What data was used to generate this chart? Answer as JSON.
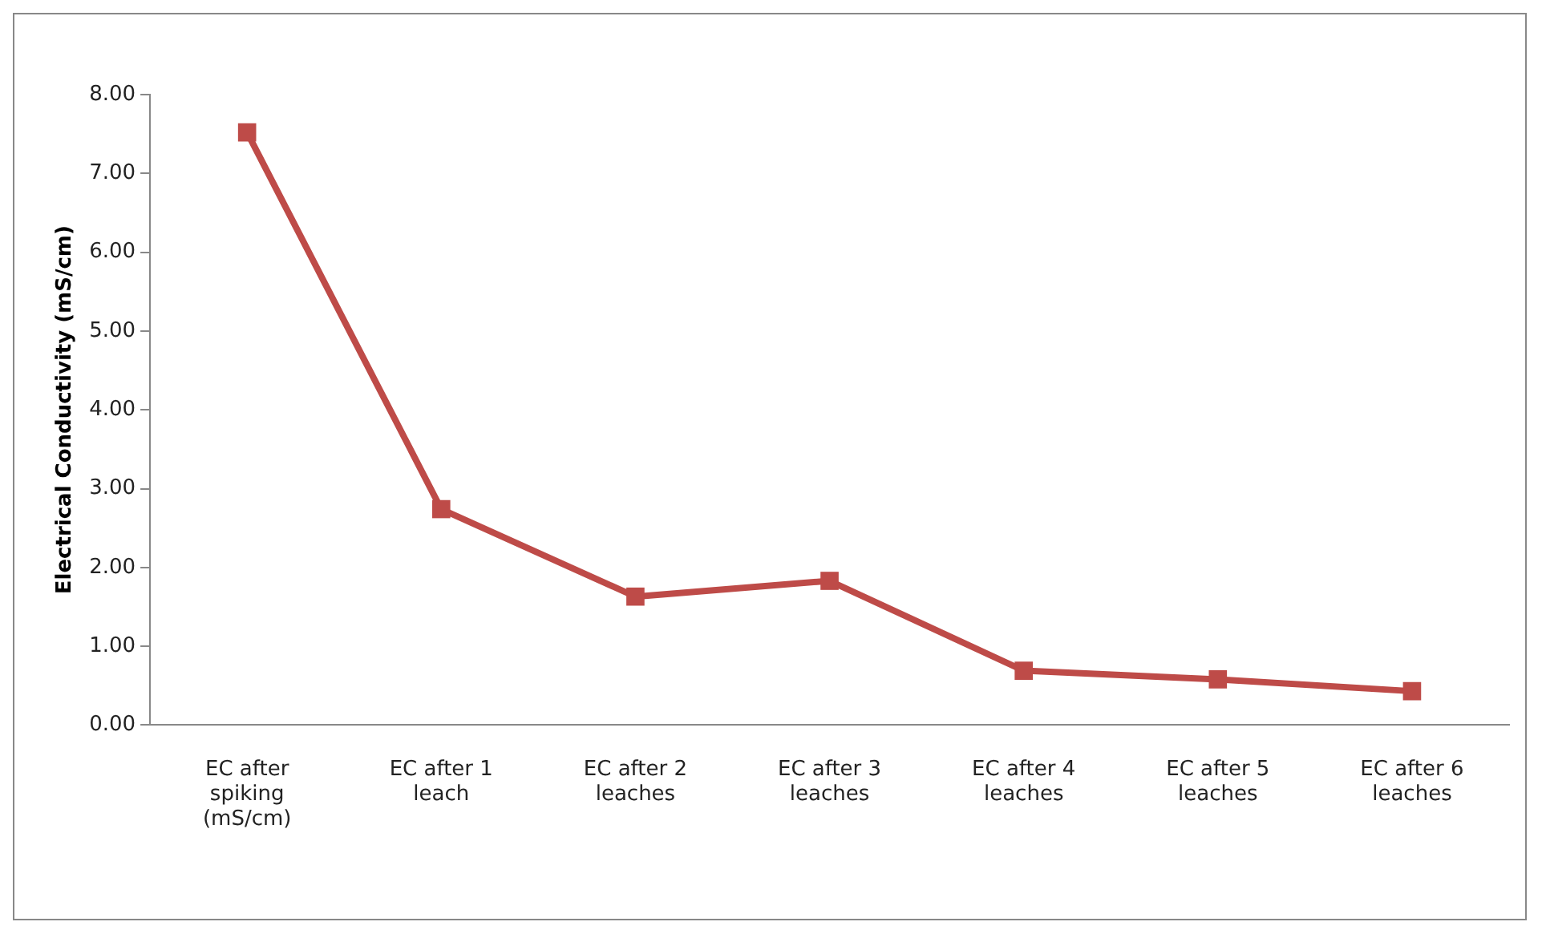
{
  "chart_data": {
    "type": "line",
    "ylabel": "Electrical Conductivity (mS/cm)",
    "categories": [
      "EC after spiking (mS/cm)",
      "EC after 1 leach",
      "EC after 2 leaches",
      "EC after 3 leaches",
      "EC after 4 leaches",
      "EC after 5 leaches",
      "EC after 6 leaches"
    ],
    "series": [
      {
        "color": "#be4b48",
        "values": [
          7.52,
          2.74,
          1.63,
          1.83,
          0.69,
          0.58,
          0.43
        ]
      }
    ],
    "ylim": [
      0,
      8
    ],
    "yticks": [
      {
        "value": 0,
        "label": "0.00"
      },
      {
        "value": 1,
        "label": "1.00"
      },
      {
        "value": 2,
        "label": "2.00"
      },
      {
        "value": 3,
        "label": "3.00"
      },
      {
        "value": 4,
        "label": "4.00"
      },
      {
        "value": 5,
        "label": "5.00"
      },
      {
        "value": 6,
        "label": "6.00"
      },
      {
        "value": 7,
        "label": "7.00"
      },
      {
        "value": 8,
        "label": "8.00"
      }
    ],
    "grid": false,
    "legend": false,
    "marker": "square",
    "line_style": "solid"
  }
}
